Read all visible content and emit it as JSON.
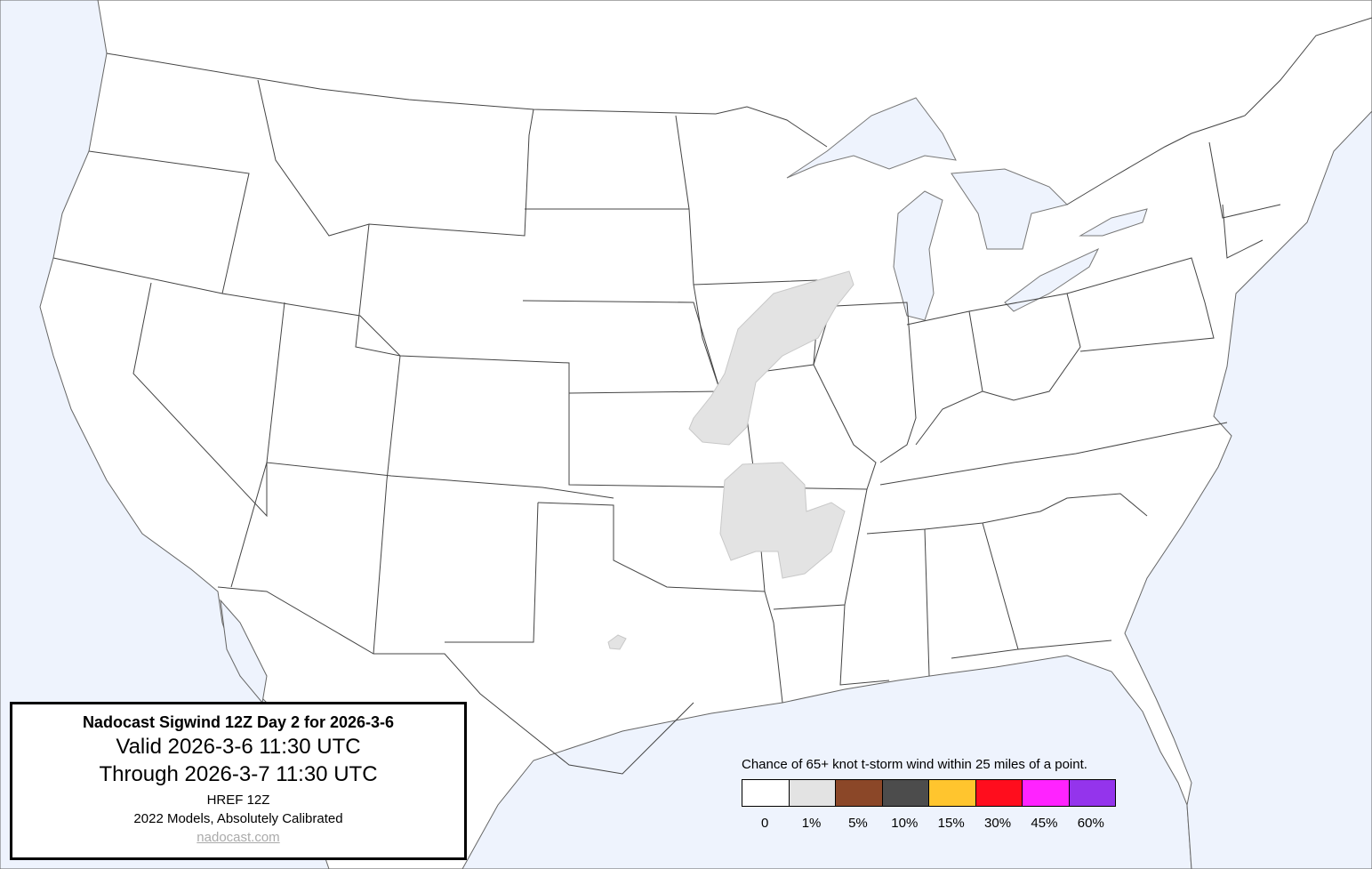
{
  "title_box": {
    "title": "Nadocast Sigwind 12Z Day 2 for 2026-3-6",
    "valid": "Valid 2026-3-6 11:30 UTC",
    "through": "Through 2026-3-7 11:30 UTC",
    "model": "HREF 12Z",
    "calibration": "2022 Models, Absolutely Calibrated",
    "link": "nadocast.com"
  },
  "legend": {
    "caption": "Chance of 65+ knot t-storm wind within 25 miles of a point.",
    "bins": [
      {
        "label": "0",
        "color": "#ffffff"
      },
      {
        "label": "1%",
        "color": "#e3e3e3"
      },
      {
        "label": "5%",
        "color": "#8b4728"
      },
      {
        "label": "10%",
        "color": "#4c4c4c"
      },
      {
        "label": "15%",
        "color": "#ffc52e"
      },
      {
        "label": "30%",
        "color": "#ff0d1d"
      },
      {
        "label": "45%",
        "color": "#ff23ff"
      },
      {
        "label": "60%",
        "color": "#9434ec"
      }
    ]
  },
  "colors": {
    "water": "#eef3fd",
    "land": "#ffffff",
    "risk_1pct": "#e3e3e3"
  },
  "risk_areas": [
    {
      "level": "1%",
      "region": "Iowa / Missouri / Illinois"
    },
    {
      "level": "1%",
      "region": "Oklahoma / Arkansas"
    },
    {
      "level": "1%",
      "region": "North Texas"
    }
  ]
}
